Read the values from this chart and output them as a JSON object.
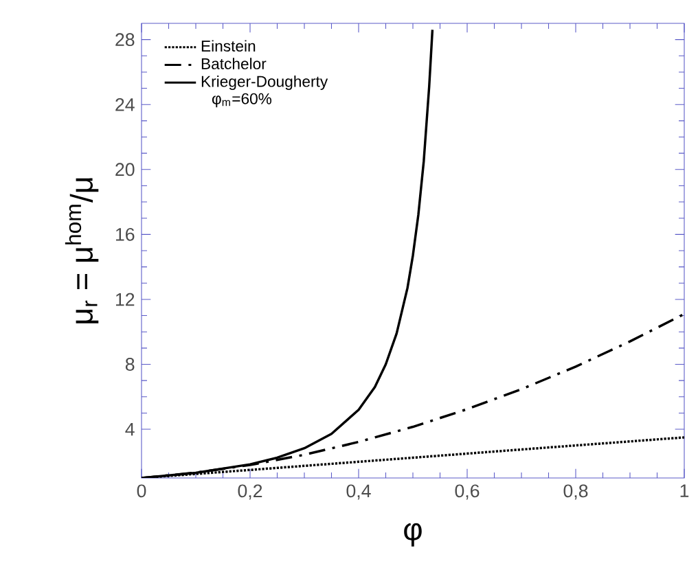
{
  "chart_data": {
    "type": "line",
    "xlabel": "φ",
    "ylabel": "μ$_{r}$ = μ$^{hom}$/μ",
    "xlim": [
      0,
      1
    ],
    "ylim": [
      1,
      29
    ],
    "xticks": [
      0,
      {
        "value": 0.2,
        "label": "0,2"
      },
      {
        "value": 0.4,
        "label": "0,4"
      },
      {
        "value": 0.6,
        "label": "0,6"
      },
      {
        "value": 0.8,
        "label": "0,8"
      },
      1
    ],
    "yticks": [
      4,
      8,
      12,
      16,
      20,
      24,
      28
    ],
    "legend": "top left",
    "grid": false,
    "marker": "none",
    "annotations": [
      "φ$_{m}$=60%"
    ],
    "series": [
      {
        "name": "Einstein",
        "color": "#000000",
        "line_style": "dotted",
        "x": [
          0,
          0.25,
          0.5,
          0.75,
          1
        ],
        "values": [
          1,
          1.62,
          2.25,
          2.88,
          3.5
        ]
      },
      {
        "name": "Batchelor",
        "color": "#000000",
        "line_style": "dashed",
        "x": [
          0,
          0.1,
          0.2,
          0.3,
          0.4,
          0.5,
          0.6,
          0.7,
          0.8,
          0.9,
          1
        ],
        "values": [
          1,
          1.33,
          1.8,
          2.43,
          3.22,
          4.15,
          5.24,
          6.47,
          7.86,
          9.41,
          11.1
        ]
      },
      {
        "name": "Krieger-Dougherty",
        "color": "#000000",
        "line_style": "solid",
        "x": [
          0,
          0.1,
          0.2,
          0.25,
          0.3,
          0.35,
          0.4,
          0.43,
          0.45,
          0.47,
          0.49,
          0.5,
          0.51,
          0.52,
          0.53,
          0.536
        ],
        "values": [
          1,
          1.32,
          1.84,
          2.25,
          2.83,
          3.72,
          5.2,
          6.6,
          8,
          9.9,
          12.7,
          14.7,
          17.2,
          20.5,
          25.1,
          28.6
        ]
      }
    ]
  }
}
